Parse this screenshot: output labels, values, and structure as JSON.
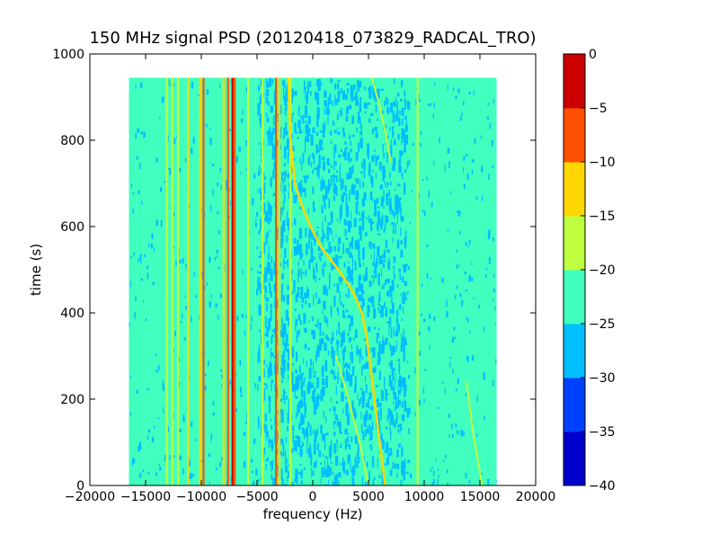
{
  "chart_data": {
    "type": "heatmap",
    "title": "150 MHz signal PSD (20120418_073829_RADCAL_TRO)",
    "xlabel": "frequency (Hz)",
    "ylabel": "time (s)",
    "xlim": [
      -20000,
      20000
    ],
    "ylim": [
      0,
      1000
    ],
    "x_ticks": [
      -20000,
      -15000,
      -10000,
      -5000,
      0,
      5000,
      10000,
      15000,
      20000
    ],
    "x_tick_labels": [
      "−20000",
      "−15000",
      "−10000",
      "−5000",
      "0",
      "5000",
      "10000",
      "15000",
      "20000"
    ],
    "y_ticks": [
      0,
      200,
      400,
      600,
      800,
      1000
    ],
    "y_tick_labels": [
      "0",
      "200",
      "400",
      "600",
      "800",
      "1000"
    ],
    "data_extent": {
      "x": [
        -16500,
        16500
      ],
      "t": [
        0,
        945
      ]
    },
    "background_level_db": -22.5,
    "colormap": "jet",
    "colorbar": {
      "levels": [
        -40,
        -35,
        -30,
        -25,
        -20,
        -15,
        -10,
        -5,
        0
      ],
      "tick_labels": [
        "−40",
        "−35",
        "−30",
        "−25",
        "−20",
        "−15",
        "−10",
        "−5",
        "0"
      ],
      "colors": [
        "#0000cd",
        "#0040ff",
        "#00bfff",
        "#40ffbf",
        "#bfff40",
        "#ffd700",
        "#ff5000",
        "#cd0000"
      ]
    },
    "lines": [
      {
        "x": -7200,
        "db": -2.5
      },
      {
        "x": -7000,
        "db": -7.5
      },
      {
        "x": -7600,
        "db": -7.5
      },
      {
        "x": -8000,
        "db": -12.5
      },
      {
        "x": -9800,
        "db": -7.5
      },
      {
        "x": -10100,
        "db": -12.5
      },
      {
        "x": -11200,
        "db": -12.5
      },
      {
        "x": -12100,
        "db": -17.5
      },
      {
        "x": -12600,
        "db": -17.5
      },
      {
        "x": -13100,
        "db": -17.5
      },
      {
        "x": -3300,
        "db": -7.5
      },
      {
        "x": -3000,
        "db": -12.5
      },
      {
        "x": -5800,
        "db": -17.5
      },
      {
        "x": -4500,
        "db": -17.5
      },
      {
        "x": -2000,
        "db": -17.5
      },
      {
        "x": 9400,
        "db": -17.5
      }
    ],
    "track_main": {
      "db": -12.5,
      "points": [
        [
          6500,
          0
        ],
        [
          6000,
          100
        ],
        [
          5300,
          250
        ],
        [
          4800,
          350
        ],
        [
          4400,
          400
        ],
        [
          3600,
          450
        ],
        [
          2300,
          500
        ],
        [
          800,
          550
        ],
        [
          -200,
          600
        ],
        [
          -1000,
          650
        ],
        [
          -1600,
          700
        ],
        [
          -2000,
          800
        ],
        [
          -2200,
          945
        ]
      ]
    },
    "track_upper": {
      "db": -17.5,
      "points": [
        [
          5300,
          945
        ],
        [
          6000,
          880
        ],
        [
          6500,
          820
        ],
        [
          7000,
          750
        ]
      ]
    },
    "track_lower": {
      "db": -17.5,
      "points": [
        [
          2100,
          300
        ],
        [
          3200,
          200
        ],
        [
          4200,
          100
        ],
        [
          5000,
          0
        ]
      ]
    },
    "track_right": {
      "db": -17.5,
      "points": [
        [
          15200,
          0
        ],
        [
          14400,
          120
        ],
        [
          13800,
          240
        ]
      ]
    }
  }
}
